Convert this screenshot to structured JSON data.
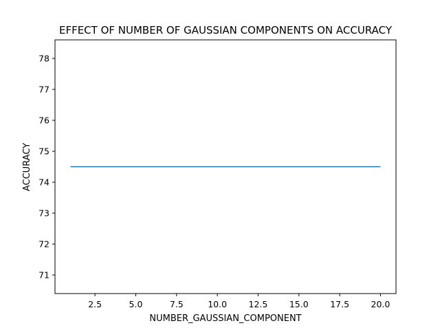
{
  "chart_data": {
    "type": "line",
    "title": "EFFECT OF NUMBER OF GAUSSIAN COMPONENTS ON ACCURACY",
    "xlabel": "NUMBER_GAUSSIAN_COMPONENT",
    "ylabel": "ACCURACY",
    "xlim": [
      0.05,
      20.95
    ],
    "ylim": [
      70.4,
      78.6
    ],
    "xticks": [
      2.5,
      5.0,
      7.5,
      10.0,
      12.5,
      15.0,
      17.5,
      20.0
    ],
    "xtick_labels": [
      "2.5",
      "5.0",
      "7.5",
      "10.0",
      "12.5",
      "15.0",
      "17.5",
      "20.0"
    ],
    "yticks": [
      71,
      72,
      73,
      74,
      75,
      76,
      77,
      78
    ],
    "ytick_labels": [
      "71",
      "72",
      "73",
      "74",
      "75",
      "76",
      "77",
      "78"
    ],
    "grid": false,
    "series": [
      {
        "color": "#1f77b4",
        "x": [
          1,
          2,
          3,
          4,
          5,
          6,
          7,
          8,
          9,
          10,
          11,
          12,
          13,
          14,
          15,
          16,
          17,
          18,
          19,
          20
        ],
        "y": [
          74.5,
          74.5,
          74.5,
          74.5,
          74.5,
          74.5,
          74.5,
          74.5,
          74.5,
          74.5,
          74.5,
          74.5,
          74.5,
          74.5,
          74.5,
          74.5,
          74.5,
          74.5,
          74.5,
          74.5
        ]
      }
    ]
  }
}
